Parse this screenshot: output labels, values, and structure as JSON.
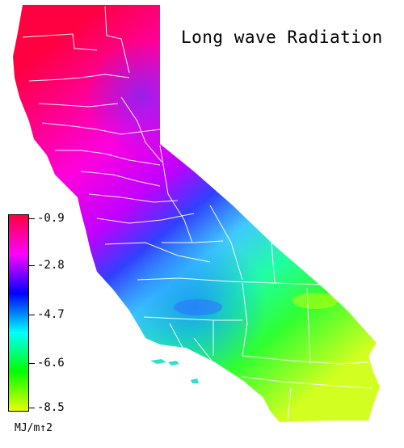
{
  "title": "Long wave Radiation",
  "legend": {
    "ticks": [
      "-0.9",
      "-2.8",
      "-4.7",
      "-6.6",
      "-8.5"
    ],
    "unit": "MJ/m↑2",
    "colors": [
      "#ff0040",
      "#ff00ff",
      "#0000ff",
      "#00ffff",
      "#00ff00",
      "#e8ff00"
    ]
  },
  "map": {
    "region": "California",
    "boundaries": "county",
    "background_color": "#ffffff",
    "boundary_color": "#ffffff",
    "value_range": [
      -8.5,
      -0.9
    ],
    "gradient_direction": "north-coast high to south-east low"
  }
}
